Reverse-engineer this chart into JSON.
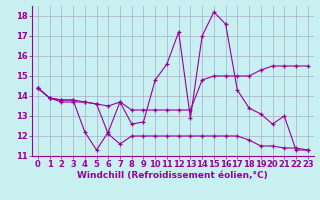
{
  "xlabel": "Windchill (Refroidissement éolien,°C)",
  "hours": [
    0,
    1,
    2,
    3,
    4,
    5,
    6,
    7,
    8,
    9,
    10,
    11,
    12,
    13,
    14,
    15,
    16,
    17,
    18,
    19,
    20,
    21,
    22,
    23
  ],
  "series1": [
    14.4,
    13.9,
    13.8,
    13.8,
    12.2,
    11.3,
    12.2,
    13.7,
    12.6,
    12.7,
    14.8,
    15.6,
    17.2,
    12.9,
    17.0,
    18.2,
    17.6,
    14.3,
    13.4,
    13.1,
    12.6,
    13.0,
    11.3,
    11.3
  ],
  "series2": [
    14.4,
    13.9,
    13.7,
    13.7,
    13.7,
    13.6,
    13.5,
    13.7,
    13.3,
    13.3,
    13.3,
    13.3,
    13.3,
    13.3,
    14.8,
    15.0,
    15.0,
    15.0,
    15.0,
    15.3,
    15.5,
    15.5,
    15.5,
    15.5
  ],
  "series3": [
    14.4,
    13.9,
    13.8,
    13.8,
    13.7,
    13.6,
    12.1,
    11.6,
    12.0,
    12.0,
    12.0,
    12.0,
    12.0,
    12.0,
    12.0,
    12.0,
    12.0,
    12.0,
    11.8,
    11.5,
    11.5,
    11.4,
    11.4,
    11.3
  ],
  "line_color": "#990099",
  "bg_color": "#c8f0f0",
  "grid_color": "#aaaacc",
  "ylim": [
    11,
    18.5
  ],
  "xlim": [
    -0.5,
    23.5
  ],
  "yticks": [
    11,
    12,
    13,
    14,
    15,
    16,
    17,
    18
  ],
  "xticks": [
    0,
    1,
    2,
    3,
    4,
    5,
    6,
    7,
    8,
    9,
    10,
    11,
    12,
    13,
    14,
    15,
    16,
    17,
    18,
    19,
    20,
    21,
    22,
    23
  ],
  "tick_fontsize": 6.0,
  "xlabel_fontsize": 6.5
}
